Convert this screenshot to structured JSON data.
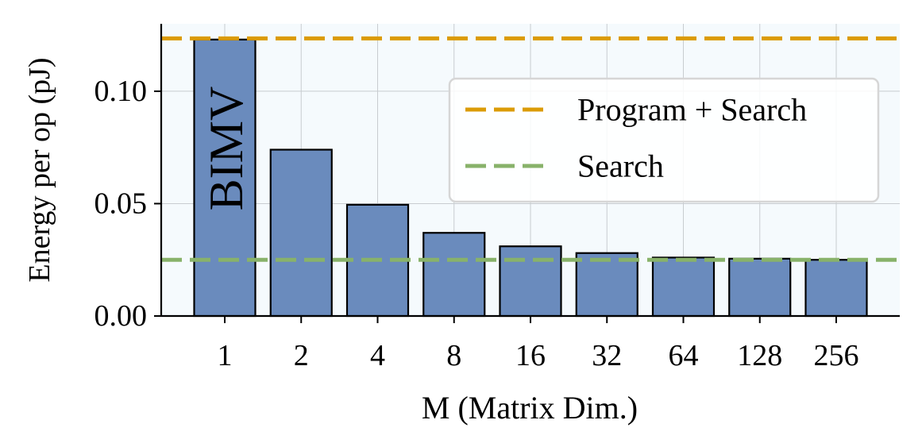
{
  "chart_data": {
    "type": "bar",
    "title": "",
    "xlabel": "M (Matrix Dim.)",
    "ylabel": "Energy per op (pJ)",
    "categories": [
      "1",
      "2",
      "4",
      "8",
      "16",
      "32",
      "64",
      "128",
      "256"
    ],
    "values": [
      0.123,
      0.074,
      0.0495,
      0.037,
      0.031,
      0.028,
      0.026,
      0.0255,
      0.025
    ],
    "ylim": [
      0,
      0.13
    ],
    "yticks": [
      0.0,
      0.05,
      0.1
    ],
    "ytick_labels": [
      "0.00",
      "0.05",
      "0.10"
    ],
    "grid": true,
    "bar_annotation": {
      "category": "1",
      "text": "BIMV"
    },
    "reference_lines": [
      {
        "name": "Program + Search",
        "y": 0.1235,
        "color": "#DB9B06",
        "style": "dashed"
      },
      {
        "name": "Search",
        "y": 0.025,
        "color": "#88B26A",
        "style": "dashed"
      }
    ],
    "legend_position": "upper-right",
    "colors": {
      "bar": "#6A8BBD",
      "bar_edge": "#000000",
      "plot_bg": "#F5FAFD",
      "grid": "#C8CCD0"
    }
  }
}
